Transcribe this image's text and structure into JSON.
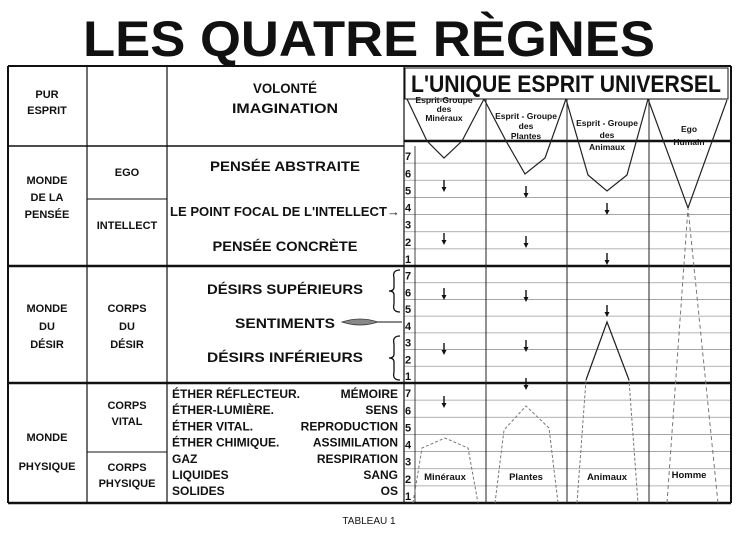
{
  "title": "LES QUATRE RÈGNES",
  "caption": "TABLEAU 1",
  "header": {
    "col1": [
      "PUR",
      "ESPRIT"
    ],
    "col3": [
      "VOLONTÉ",
      "IMAGINATION"
    ],
    "banner": "L'UNIQUE ESPRIT UNIVERSEL",
    "group_spirits": [
      [
        "Esprit-Groupe",
        "des",
        "Minéraux"
      ],
      [
        "Esprit - Groupe",
        "des",
        "Plantes"
      ],
      [
        "Esprit - Groupe",
        "des",
        "Animaux"
      ],
      [
        "Ego",
        "Humain"
      ]
    ]
  },
  "levels": [
    "7",
    "6",
    "5",
    "4",
    "3",
    "2",
    "1"
  ],
  "pensee": {
    "world": [
      "MONDE",
      "DE LA",
      "PENSÉE"
    ],
    "ego": "EGO",
    "intellect": "INTELLECT",
    "abstract": "PENSÉE ABSTRAITE",
    "focal": "LE POINT FOCAL DE L'INTELLECT→",
    "concrete": "PENSÉE CONCRÈTE"
  },
  "desir": {
    "world": [
      "MONDE",
      "DU",
      "DÉSIR"
    ],
    "body": [
      "CORPS",
      "DU",
      "DÉSIR"
    ],
    "superior": "DÉSIRS SUPÉRIEURS",
    "feelings": "SENTIMENTS",
    "inferior": "DÉSIRS INFÉRIEURS"
  },
  "physique": {
    "world": [
      "MONDE",
      "PHYSIQUE"
    ],
    "vital_body": [
      "CORPS",
      "VITAL"
    ],
    "physical_body": [
      "CORPS",
      "PHYSIQUE"
    ],
    "rows": [
      {
        "left": "ÉTHER RÉFLECTEUR.",
        "right": "MÉMOIRE"
      },
      {
        "left": "ÉTHER-LUMIÈRE.",
        "right": "SENS"
      },
      {
        "left": "ÉTHER VITAL.",
        "right": "REPRODUCTION"
      },
      {
        "left": "ÉTHER CHIMIQUE.",
        "right": "ASSIMILATION"
      },
      {
        "left": "GAZ",
        "right": "RESPIRATION"
      },
      {
        "left": "LIQUIDES",
        "right": "SANG"
      },
      {
        "left": "SOLIDES",
        "right": "OS"
      }
    ]
  },
  "kingdoms": [
    "Minéraux",
    "Plantes",
    "Animaux",
    "Homme"
  ]
}
